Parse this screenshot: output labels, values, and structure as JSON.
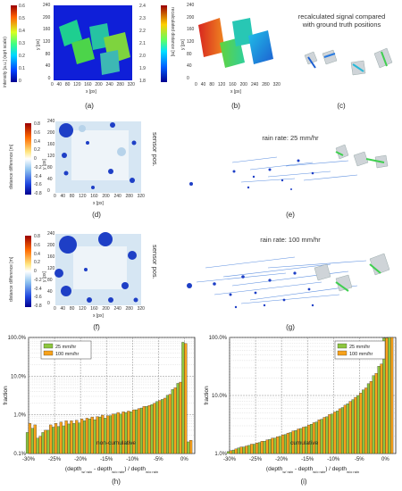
{
  "top": {
    "a": {
      "colorbar_label": "intensity [a.u.] (sqrt scale)",
      "colorbar_ticks": [
        "0",
        "0.1",
        "0.2",
        "0.3",
        "0.4",
        "0.5",
        "0.6"
      ],
      "y_label": "y [px]",
      "y_ticks": [
        "0",
        "40",
        "80",
        "120",
        "160",
        "200",
        "240"
      ],
      "x_label": "x [px]",
      "x_ticks": [
        "0",
        "40",
        "80",
        "120",
        "160",
        "200",
        "240",
        "280",
        "320"
      ],
      "caption": "(a)"
    },
    "b": {
      "colorbar_label": "recalculated distance [m]",
      "colorbar_ticks": [
        "1.8",
        "1.9",
        "2.0",
        "2.1",
        "2.2",
        "2.3",
        "2.4"
      ],
      "y_label": "y [px]",
      "y_ticks": [
        "0",
        "40",
        "80",
        "120",
        "160",
        "200",
        "240"
      ],
      "x_label": "x [px]",
      "x_ticks": [
        "0",
        "40",
        "80",
        "120",
        "160",
        "200",
        "240",
        "280",
        "320"
      ],
      "caption": "(b)"
    },
    "c": {
      "title_line1": "recalculated signal compared",
      "title_line2": "with ground truth positions",
      "caption": "(c)"
    }
  },
  "middle": {
    "d": {
      "colorbar_label": "distance difference [m]",
      "colorbar_ticks": [
        "0.8",
        "0.6",
        "0.4",
        "0.2",
        "0",
        "-0.2",
        "-0.4",
        "-0.6",
        "-0.8"
      ],
      "y_label": "y [px]",
      "y_ticks": [
        "0",
        "40",
        "80",
        "120",
        "160",
        "200",
        "240"
      ],
      "x_label": "x [px]",
      "x_ticks": [
        "0",
        "40",
        "80",
        "120",
        "160",
        "200",
        "240",
        "280",
        "320"
      ],
      "side_label": "sensor pos.",
      "caption": "(d)"
    },
    "e": {
      "title": "rain rate: 25 mm/hr",
      "caption": "(e)"
    },
    "f": {
      "colorbar_label": "distance difference [m]",
      "colorbar_ticks": [
        "0.8",
        "0.6",
        "0.4",
        "0.2",
        "0",
        "-0.2",
        "-0.4",
        "-0.6",
        "-0.8"
      ],
      "y_label": "y [px]",
      "y_ticks": [
        "0",
        "40",
        "80",
        "120",
        "160",
        "200",
        "240"
      ],
      "x_label": "x [px]",
      "x_ticks": [
        "0",
        "40",
        "80",
        "120",
        "160",
        "200",
        "240",
        "280",
        "320"
      ],
      "side_label": "sensor pos.",
      "caption": "(f)"
    },
    "g": {
      "title": "rain rate: 100 mm/hr",
      "caption": "(g)"
    }
  },
  "colors": {
    "series_25": "#8dc63f",
    "series_100": "#f7a21b",
    "bar_outline": "#222222",
    "cube_blue": "#1d5fd1",
    "cube_green": "#3fcf4f",
    "cube_red": "#d8261f",
    "blob_blue": "#1e3fc6",
    "light_blue": "#b7d3ea"
  },
  "chart_data": [
    {
      "type": "bar",
      "caption": "(h)",
      "annotation": "non-cumulative",
      "xlabel": "(depth",
      "xlabel_sub1": "w/ rain",
      "xlabel_mid": " - depth",
      "xlabel_sub2": "w/o rain",
      "xlabel_end": ") / depth",
      "xlabel_sub3": "w/o rain",
      "ylabel": "fraction",
      "yscale": "log",
      "ylim": [
        0.001,
        1.0
      ],
      "y_ticks": [
        "0.1%",
        "1.0%",
        "10.0%",
        "100.0%"
      ],
      "x_ticks": [
        "-30%",
        "-25%",
        "-20%",
        "-15%",
        "-10%",
        "-5%",
        "0%"
      ],
      "xlim": [
        -30,
        2
      ],
      "legend_location": "top-left",
      "bin_width_percent": 1,
      "bin_centers": [
        -30,
        -29,
        -28,
        -27,
        -26,
        -25,
        -24,
        -23,
        -22,
        -21,
        -20,
        -19,
        -18,
        -17,
        -16,
        -15,
        -14,
        -13,
        -12,
        -11,
        -10,
        -9,
        -8,
        -7,
        -6,
        -5,
        -4,
        -3,
        -2,
        -1,
        0,
        1
      ],
      "series": [
        {
          "name": "25 mm/hr",
          "values": [
            0.0035,
            0.0045,
            0.0025,
            0.0035,
            0.004,
            0.0048,
            0.005,
            0.0052,
            0.0058,
            0.006,
            0.0062,
            0.007,
            0.0078,
            0.0075,
            0.0088,
            0.0082,
            0.0095,
            0.0105,
            0.0105,
            0.0115,
            0.012,
            0.0135,
            0.015,
            0.0165,
            0.0185,
            0.022,
            0.025,
            0.032,
            0.045,
            0.065,
            0.75,
            0.002
          ]
        },
        {
          "name": "100 mm/hr",
          "values": [
            0.006,
            0.0055,
            0.0028,
            0.004,
            0.0055,
            0.006,
            0.0065,
            0.007,
            0.007,
            0.0072,
            0.0078,
            0.0082,
            0.0088,
            0.009,
            0.0098,
            0.0095,
            0.0105,
            0.0115,
            0.012,
            0.0125,
            0.0135,
            0.0145,
            0.0165,
            0.0175,
            0.02,
            0.0235,
            0.027,
            0.034,
            0.05,
            0.07,
            0.7,
            0.0022
          ]
        }
      ]
    },
    {
      "type": "bar",
      "caption": "(i)",
      "annotation": "cumulative",
      "xlabel": "(depth",
      "xlabel_sub1": "w/ rain",
      "xlabel_mid": " - depth",
      "xlabel_sub2": "w/o rain",
      "xlabel_end": ") / depth",
      "xlabel_sub3": "w/o rain",
      "ylabel": "fraction",
      "yscale": "log",
      "ylim": [
        0.01,
        1.0
      ],
      "y_ticks": [
        "1.0%",
        "10.0%",
        "100.0%"
      ],
      "x_ticks": [
        "-30%",
        "-25%",
        "-20%",
        "-15%",
        "-10%",
        "-5%",
        "0%"
      ],
      "xlim": [
        -30,
        2
      ],
      "legend_location": "top-right",
      "bin_width_percent": 1,
      "bin_centers": [
        -30,
        -29,
        -28,
        -27,
        -26,
        -25,
        -24,
        -23,
        -22,
        -21,
        -20,
        -19,
        -18,
        -17,
        -16,
        -15,
        -14,
        -13,
        -12,
        -11,
        -10,
        -9,
        -8,
        -7,
        -6,
        -5,
        -4,
        -3,
        -2,
        -1,
        0,
        1
      ],
      "series": [
        {
          "name": "25 mm/hr",
          "values": [
            0.0108,
            0.0115,
            0.0125,
            0.013,
            0.0138,
            0.0145,
            0.0155,
            0.0163,
            0.0175,
            0.0185,
            0.0198,
            0.0213,
            0.023,
            0.025,
            0.027,
            0.029,
            0.032,
            0.035,
            0.039,
            0.043,
            0.048,
            0.054,
            0.062,
            0.072,
            0.085,
            0.1,
            0.125,
            0.16,
            0.22,
            0.32,
            0.98,
            1.0
          ]
        },
        {
          "name": "100 mm/hr",
          "values": [
            0.0112,
            0.012,
            0.013,
            0.0135,
            0.0145,
            0.0152,
            0.0163,
            0.0172,
            0.0185,
            0.0195,
            0.021,
            0.0225,
            0.0245,
            0.0265,
            0.0285,
            0.031,
            0.034,
            0.038,
            0.042,
            0.047,
            0.052,
            0.059,
            0.068,
            0.079,
            0.093,
            0.11,
            0.135,
            0.175,
            0.24,
            0.35,
            0.98,
            1.0
          ]
        }
      ]
    }
  ]
}
